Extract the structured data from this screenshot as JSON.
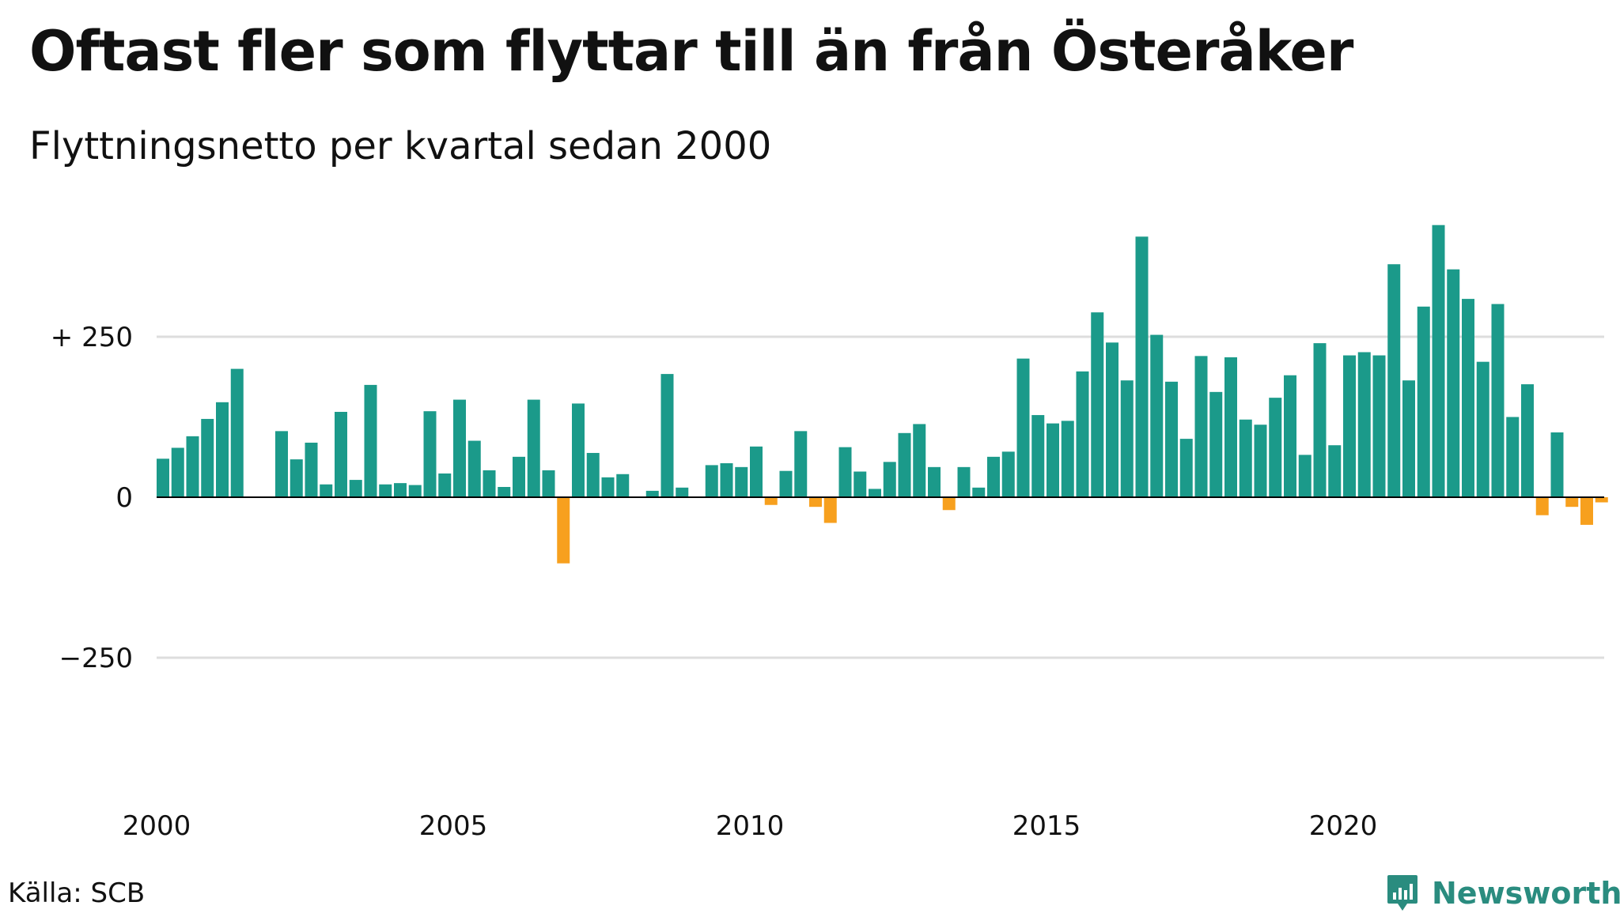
{
  "title": "Oftast fler som flyttar till än från Österåker",
  "subtitle": "Flyttningsnetto per kvartal sedan 2000",
  "source": "Källa: SCB",
  "brand": {
    "name": "Newsworthy",
    "logo_icon": "newsworthy-chart-logo-icon"
  },
  "colors": {
    "positive": "#1b9a8a",
    "negative": "#f7a01e",
    "grid": "#dddddd",
    "zero": "#000000",
    "brand": "#2a8c7f"
  },
  "chart_data": {
    "type": "bar",
    "title": "Oftast fler som flyttar till än från Österåker",
    "subtitle": "Flyttningsnetto per kvartal sedan 2000",
    "xlabel": "",
    "ylabel": "",
    "ylim": [
      -450,
      450
    ],
    "yticks": [
      {
        "value": 250,
        "label": "+ 250"
      },
      {
        "value": 0,
        "label": "0"
      },
      {
        "value": -250,
        "label": "−250"
      }
    ],
    "x_ticks": [
      "2000",
      "2005",
      "2010",
      "2015",
      "2020"
    ],
    "grid": true,
    "start": "2000 Q1",
    "categories": [
      "2000 Q1",
      "2000 Q2",
      "2000 Q3",
      "2000 Q4",
      "2001 Q1",
      "2001 Q2",
      "2001 Q3",
      "2001 Q4",
      "2002 Q1",
      "2002 Q2",
      "2002 Q3",
      "2002 Q4",
      "2003 Q1",
      "2003 Q2",
      "2003 Q3",
      "2003 Q4",
      "2004 Q1",
      "2004 Q2",
      "2004 Q3",
      "2004 Q4",
      "2005 Q1",
      "2005 Q2",
      "2005 Q3",
      "2005 Q4",
      "2006 Q1",
      "2006 Q2",
      "2006 Q3",
      "2006 Q4",
      "2007 Q1",
      "2007 Q2",
      "2007 Q3",
      "2007 Q4",
      "2008 Q1",
      "2008 Q2",
      "2008 Q3",
      "2008 Q4",
      "2009 Q1",
      "2009 Q2",
      "2009 Q3",
      "2009 Q4",
      "2010 Q1",
      "2010 Q2",
      "2010 Q3",
      "2010 Q4",
      "2011 Q1",
      "2011 Q2",
      "2011 Q3",
      "2011 Q4",
      "2012 Q1",
      "2012 Q2",
      "2012 Q3",
      "2012 Q4",
      "2013 Q1",
      "2013 Q2",
      "2013 Q3",
      "2013 Q4",
      "2014 Q1",
      "2014 Q2",
      "2014 Q3",
      "2014 Q4",
      "2015 Q1",
      "2015 Q2",
      "2015 Q3",
      "2015 Q4",
      "2016 Q1",
      "2016 Q2",
      "2016 Q3",
      "2016 Q4",
      "2017 Q1",
      "2017 Q2",
      "2017 Q3",
      "2017 Q4",
      "2018 Q1",
      "2018 Q2",
      "2018 Q3",
      "2018 Q4",
      "2019 Q1",
      "2019 Q2",
      "2019 Q3",
      "2019 Q4",
      "2020 Q1",
      "2020 Q2",
      "2020 Q3",
      "2020 Q4",
      "2021 Q1",
      "2021 Q2",
      "2021 Q3",
      "2021 Q4",
      "2022 Q1",
      "2022 Q2",
      "2022 Q3",
      "2022 Q4",
      "2023 Q1",
      "2023 Q2",
      "2023 Q3",
      "2023 Q4",
      "2024 Q1",
      "2024 Q2"
    ],
    "values": [
      60,
      77,
      95,
      122,
      148,
      200,
      0,
      0,
      103,
      59,
      85,
      20,
      133,
      27,
      175,
      20,
      22,
      19,
      134,
      37,
      152,
      88,
      42,
      16,
      63,
      152,
      42,
      -103,
      146,
      69,
      31,
      36,
      0,
      10,
      192,
      15,
      0,
      50,
      53,
      47,
      79,
      -12,
      41,
      103,
      -15,
      -40,
      78,
      40,
      13,
      55,
      100,
      114,
      47,
      -20,
      47,
      15,
      63,
      71,
      216,
      128,
      115,
      119,
      196,
      288,
      241,
      182,
      406,
      253,
      180,
      91,
      220,
      164,
      218,
      121,
      113,
      155,
      190,
      66,
      240,
      81,
      221,
      226,
      221,
      363,
      182,
      297,
      424,
      355,
      309,
      211,
      301,
      125,
      176,
      -28,
      101,
      -15,
      -43,
      -8
    ]
  }
}
